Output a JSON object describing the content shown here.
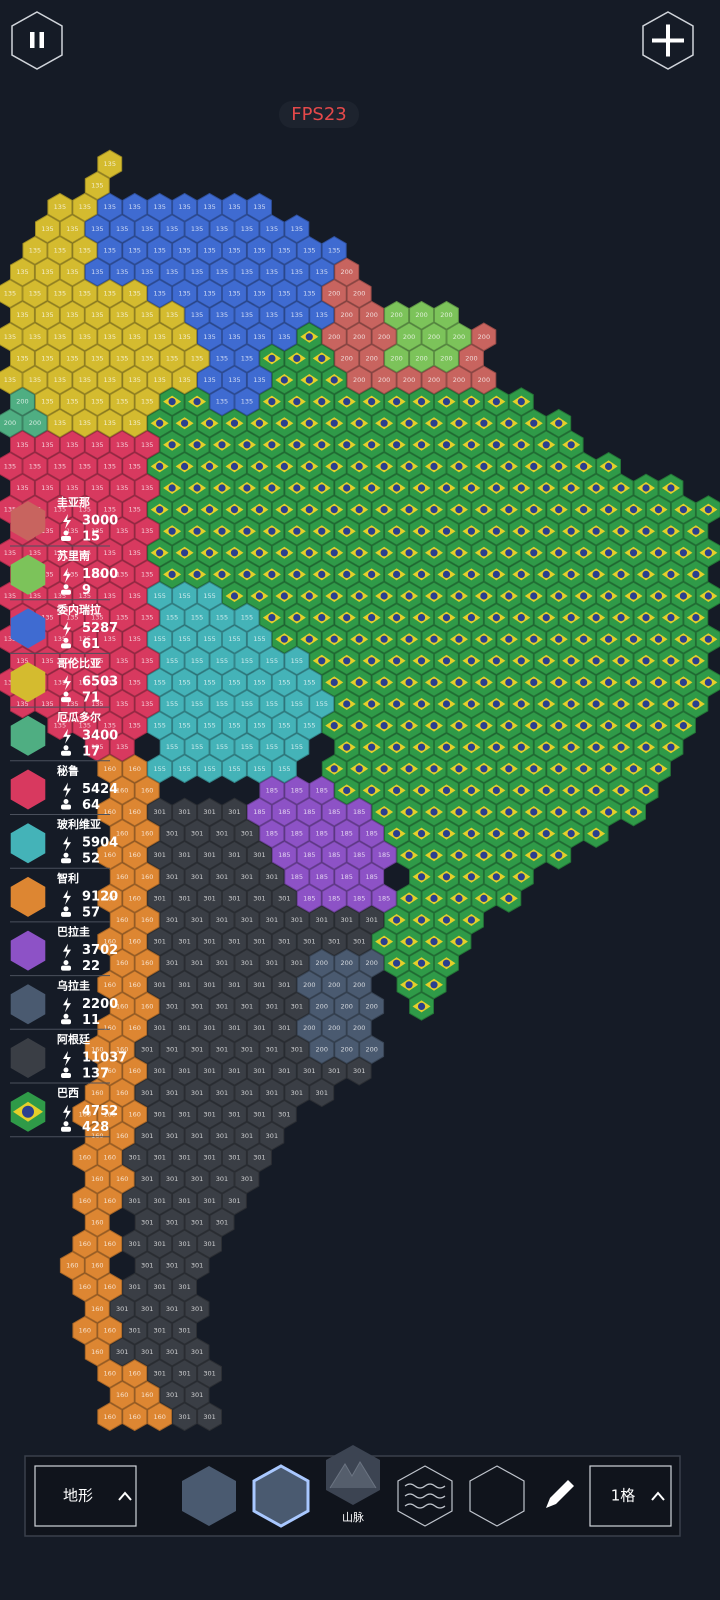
{
  "fps": "FPS23",
  "legend": {
    "entries": [
      {
        "name": "圭亚那",
        "power": 3000,
        "population": 15,
        "color": "#c8645f",
        "hex_label": "200"
      },
      {
        "name": "苏里南",
        "power": 1800,
        "population": 9,
        "color": "#7cc35a",
        "hex_label": "200"
      },
      {
        "name": "委内瑞拉",
        "power": 5287,
        "population": 61,
        "color": "#3f6bd1",
        "hex_label": "135"
      },
      {
        "name": "哥伦比亚",
        "power": 6503,
        "population": 71,
        "color": "#d4bb2f",
        "hex_label": "135"
      },
      {
        "name": "厄瓜多尔",
        "power": 3400,
        "population": 17,
        "color": "#4fae82",
        "hex_label": "200"
      },
      {
        "name": "秘鲁",
        "power": 5424,
        "population": 64,
        "color": "#d8395f",
        "hex_label": "135"
      },
      {
        "name": "玻利维亚",
        "power": 5904,
        "population": 52,
        "color": "#44b3b8",
        "hex_label": "155"
      },
      {
        "name": "智利",
        "power": 9120,
        "population": 57,
        "color": "#dd8632",
        "hex_label": "160"
      },
      {
        "name": "巴拉圭",
        "power": 3702,
        "population": 22,
        "color": "#8d52c6",
        "hex_label": "185"
      },
      {
        "name": "乌拉圭",
        "power": 2200,
        "population": 11,
        "color": "#4a5a70",
        "hex_label": "200"
      },
      {
        "name": "阿根廷",
        "power": 11037,
        "population": 137,
        "color": "#3a3e45",
        "hex_label": "301"
      },
      {
        "name": "巴西",
        "power": 4752,
        "population": 428,
        "color": "#2f9a48"
      }
    ]
  },
  "toolbar": {
    "mode": "地形",
    "selected_tile": "山脉",
    "brush_size": "1格"
  }
}
